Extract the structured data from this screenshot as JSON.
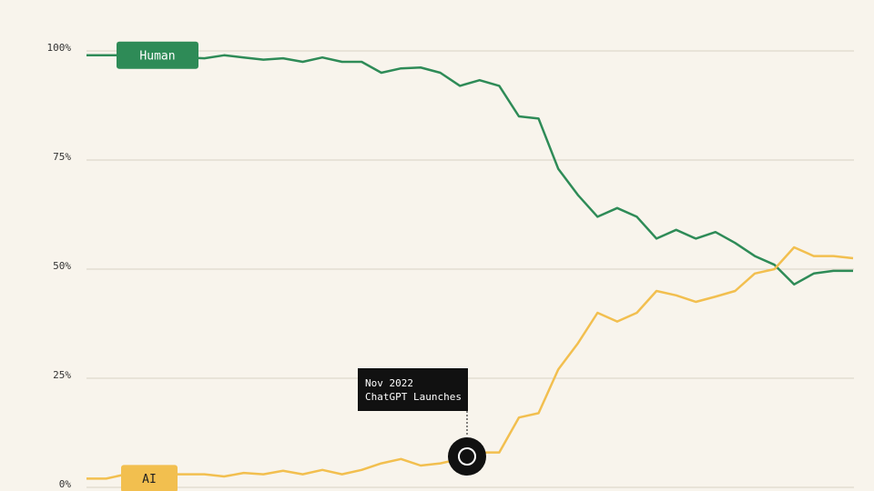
{
  "chart_data": {
    "type": "line",
    "series": [
      {
        "name": "Human",
        "color": "#2e8b57",
        "values": [
          99,
          99,
          99,
          99,
          98.5,
          98.5,
          98.3,
          99,
          98.5,
          98,
          98.3,
          97.5,
          98.5,
          97.5,
          97.5,
          95,
          96,
          96.2,
          95,
          92,
          93.3,
          92,
          85,
          84.5,
          73,
          67,
          62,
          64,
          62,
          57,
          59,
          57,
          58.5,
          56,
          53,
          51,
          46.5,
          49,
          49.6,
          49.6
        ]
      },
      {
        "name": "AI",
        "color": "#f2bf4f",
        "values": [
          2,
          2,
          3,
          3,
          3,
          3,
          3,
          2.5,
          3.3,
          3,
          3.8,
          3,
          4,
          3,
          4,
          5.5,
          6.5,
          5,
          5.5,
          6.5,
          8,
          8,
          16,
          17,
          27,
          33,
          40,
          38,
          40,
          45,
          44,
          42.5,
          43.7,
          45,
          49,
          50,
          55,
          53,
          53,
          52.5
        ]
      }
    ],
    "ylim": [
      0,
      100
    ],
    "yticks": [
      {
        "value": 0,
        "label": "0%"
      },
      {
        "value": 25,
        "label": "25%"
      },
      {
        "value": 50,
        "label": "50%"
      },
      {
        "value": 75,
        "label": "75%"
      },
      {
        "value": 100,
        "label": "100%"
      }
    ],
    "grid": true,
    "annotation": [
      "Nov 2022",
      "ChatGPT Launches"
    ]
  }
}
